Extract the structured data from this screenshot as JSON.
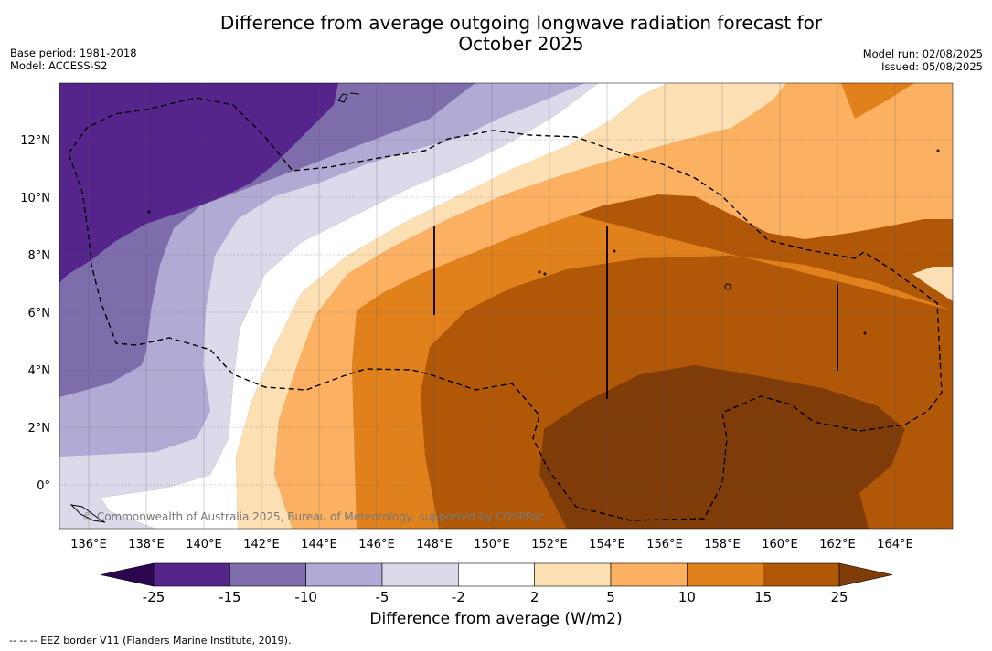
{
  "title": {
    "line1": "Difference from average outgoing longwave radiation forecast for",
    "line2": "October 2025"
  },
  "meta_left": {
    "base_period": "Base period: 1981-2018",
    "model": "Model: ACCESS-S2"
  },
  "meta_right": {
    "model_run": "Model run: 02/08/2025",
    "issued": "Issued: 05/08/2025"
  },
  "map": {
    "lat_ticks": [
      "12°N",
      "10°N",
      "8°N",
      "6°N",
      "4°N",
      "2°N",
      "0°"
    ],
    "lon_ticks": [
      "136°E",
      "138°E",
      "140°E",
      "142°E",
      "144°E",
      "146°E",
      "148°E",
      "150°E",
      "152°E",
      "154°E",
      "156°E",
      "158°E",
      "160°E",
      "162°E",
      "164°E"
    ],
    "credit": "© Commonwealth of Australia 2025, Bureau of Meteorology, supported by COSPPac"
  },
  "colorbar": {
    "labels": [
      "-25",
      "-15",
      "-10",
      "-5",
      "-2",
      "2",
      "5",
      "10",
      "15",
      "25"
    ],
    "colors": [
      "#2d0650",
      "#56258b",
      "#7d6dab",
      "#b0aad4",
      "#dadaeb",
      "#ffffff",
      "#fddfb4",
      "#fbb161",
      "#e0811b",
      "#b15808",
      "#7f3b08"
    ],
    "title": "Difference from average (W/m2)"
  },
  "legend_note": "--  --  -- EEZ border V11 (Flanders Marine Institute, 2019)."
}
